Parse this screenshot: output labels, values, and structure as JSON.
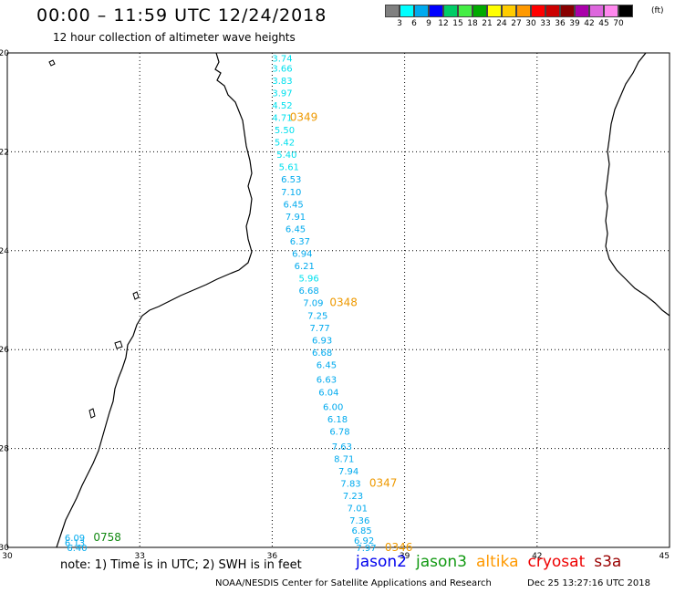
{
  "header": {
    "title": "00:00 – 11:59 UTC 12/24/2018",
    "subtitle": "12 hour collection of altimeter wave heights"
  },
  "legend": {
    "colors": [
      "#808080",
      "#00ffff",
      "#00aaee",
      "#0000ff",
      "#00cc66",
      "#44ee44",
      "#00aa00",
      "#ffff00",
      "#ffcc00",
      "#ff9900",
      "#ff0000",
      "#cc0000",
      "#880000",
      "#aa00aa",
      "#dd66dd",
      "#ff88ee",
      "#000000"
    ],
    "labels": [
      "3",
      "6",
      "9",
      "12",
      "15",
      "18",
      "21",
      "24",
      "27",
      "30",
      "33",
      "36",
      "39",
      "42",
      "45",
      "70"
    ],
    "unit": "(ft)"
  },
  "axes": {
    "lon_ticks": [
      "30",
      "33",
      "36",
      "39",
      "42",
      "45"
    ],
    "lat_ticks": [
      "-20",
      "-22",
      "-24",
      "-26",
      "-28",
      "-30"
    ]
  },
  "track_values": [
    {
      "v": "3.74",
      "lat": -20.1,
      "lon": 36.0,
      "color": "#00e0ee"
    },
    {
      "v": "3.66",
      "lat": -20.3,
      "lon": 36.0,
      "color": "#00e0ee"
    },
    {
      "v": "3.83",
      "lat": -20.55,
      "lon": 36.0,
      "color": "#00e0ee"
    },
    {
      "v": "3.97",
      "lat": -20.8,
      "lon": 36.0,
      "color": "#00e0ee"
    },
    {
      "v": "4.52",
      "lat": -21.05,
      "lon": 36.0,
      "color": "#00e0ee"
    },
    {
      "v": "4.71",
      "lat": -21.3,
      "lon": 36.0,
      "color": "#00e0ee"
    },
    {
      "v": "5.50",
      "lat": -21.55,
      "lon": 36.05,
      "color": "#00e0ee"
    },
    {
      "v": "5.42",
      "lat": -21.8,
      "lon": 36.05,
      "color": "#00e0ee"
    },
    {
      "v": "5.40",
      "lat": -22.05,
      "lon": 36.1,
      "color": "#00e0ee"
    },
    {
      "v": "5.61",
      "lat": -22.3,
      "lon": 36.15,
      "color": "#00e0ee"
    },
    {
      "v": "6.53",
      "lat": -22.55,
      "lon": 36.2,
      "color": "#00aaee"
    },
    {
      "v": "7.10",
      "lat": -22.8,
      "lon": 36.2,
      "color": "#00aaee"
    },
    {
      "v": "6.45",
      "lat": -23.05,
      "lon": 36.25,
      "color": "#00aaee"
    },
    {
      "v": "7.91",
      "lat": -23.3,
      "lon": 36.3,
      "color": "#00aaee"
    },
    {
      "v": "6.45",
      "lat": -23.55,
      "lon": 36.3,
      "color": "#00aaee"
    },
    {
      "v": "6.37",
      "lat": -23.8,
      "lon": 36.4,
      "color": "#00aaee"
    },
    {
      "v": "6.94",
      "lat": -24.05,
      "lon": 36.45,
      "color": "#00aaee"
    },
    {
      "v": "6.21",
      "lat": -24.3,
      "lon": 36.5,
      "color": "#00aaee"
    },
    {
      "v": "5.96",
      "lat": -24.55,
      "lon": 36.6,
      "color": "#00e0ee"
    },
    {
      "v": "6.68",
      "lat": -24.8,
      "lon": 36.6,
      "color": "#00aaee"
    },
    {
      "v": "7.09",
      "lat": -25.05,
      "lon": 36.7,
      "color": "#00aaee"
    },
    {
      "v": "7.25",
      "lat": -25.3,
      "lon": 36.8,
      "color": "#00aaee"
    },
    {
      "v": "7.77",
      "lat": -25.55,
      "lon": 36.85,
      "color": "#00aaee"
    },
    {
      "v": "6.93",
      "lat": -25.8,
      "lon": 36.9,
      "color": "#00aaee"
    },
    {
      "v": "6.68",
      "lat": -26.05,
      "lon": 36.9,
      "color": "#00aaee"
    },
    {
      "v": "6.45",
      "lat": -26.3,
      "lon": 37.0,
      "color": "#00aaee"
    },
    {
      "v": "6.63",
      "lat": -26.6,
      "lon": 37.0,
      "color": "#00aaee"
    },
    {
      "v": "6.04",
      "lat": -26.85,
      "lon": 37.05,
      "color": "#00aaee"
    },
    {
      "v": "6.00",
      "lat": -27.15,
      "lon": 37.15,
      "color": "#00aaee"
    },
    {
      "v": "6.18",
      "lat": -27.4,
      "lon": 37.25,
      "color": "#00aaee"
    },
    {
      "v": "6.78",
      "lat": -27.65,
      "lon": 37.3,
      "color": "#00aaee"
    },
    {
      "v": "7.63",
      "lat": -27.95,
      "lon": 37.35,
      "color": "#00aaee"
    },
    {
      "v": "8.71",
      "lat": -28.2,
      "lon": 37.4,
      "color": "#00aaee"
    },
    {
      "v": "7.94",
      "lat": -28.45,
      "lon": 37.5,
      "color": "#00aaee"
    },
    {
      "v": "7.83",
      "lat": -28.7,
      "lon": 37.55,
      "color": "#00aaee"
    },
    {
      "v": "7.23",
      "lat": -28.95,
      "lon": 37.6,
      "color": "#00aaee"
    },
    {
      "v": "7.01",
      "lat": -29.2,
      "lon": 37.7,
      "color": "#00aaee"
    },
    {
      "v": "7.36",
      "lat": -29.45,
      "lon": 37.75,
      "color": "#00aaee"
    },
    {
      "v": "6.85",
      "lat": -29.65,
      "lon": 37.8,
      "color": "#00aaee"
    },
    {
      "v": "6.92",
      "lat": -29.85,
      "lon": 37.85,
      "color": "#00aaee"
    },
    {
      "v": "7.97",
      "lat": -30.0,
      "lon": 37.9,
      "color": "#00aaee"
    },
    {
      "v": "6.09",
      "lat": -29.8,
      "lon": 31.3,
      "color": "#00aaee"
    },
    {
      "v": "6.13",
      "lat": -29.9,
      "lon": 31.3,
      "color": "#00aaee"
    },
    {
      "v": "6.40",
      "lat": -30.0,
      "lon": 31.35,
      "color": "#00aaee"
    }
  ],
  "pass_times": [
    {
      "t": "0349",
      "lat": -21.3,
      "lon": 36.4,
      "color": "#ee9900"
    },
    {
      "t": "0348",
      "lat": -25.05,
      "lon": 37.3,
      "color": "#ee9900"
    },
    {
      "t": "0347",
      "lat": -28.7,
      "lon": 38.2,
      "color": "#ee9900"
    },
    {
      "t": "0346",
      "lat": -30.0,
      "lon": 38.55,
      "color": "#ee9900"
    },
    {
      "t": "0758",
      "lat": -29.8,
      "lon": 31.95,
      "color": "#118811"
    }
  ],
  "note": "note:  1) Time is in UTC;  2) SWH is in feet",
  "satellites": [
    {
      "name": "jason2",
      "color": "#0000ee"
    },
    {
      "name": "jason3",
      "color": "#119911"
    },
    {
      "name": "altika",
      "color": "#ff9900"
    },
    {
      "name": "cryosat",
      "color": "#ee0000"
    },
    {
      "name": "s3a",
      "color": "#990000"
    }
  ],
  "footer": {
    "left": "NOAA/NESDIS Center for Satellite Applications and Research",
    "right": "Dec 25 13:27:16 UTC 2018"
  }
}
